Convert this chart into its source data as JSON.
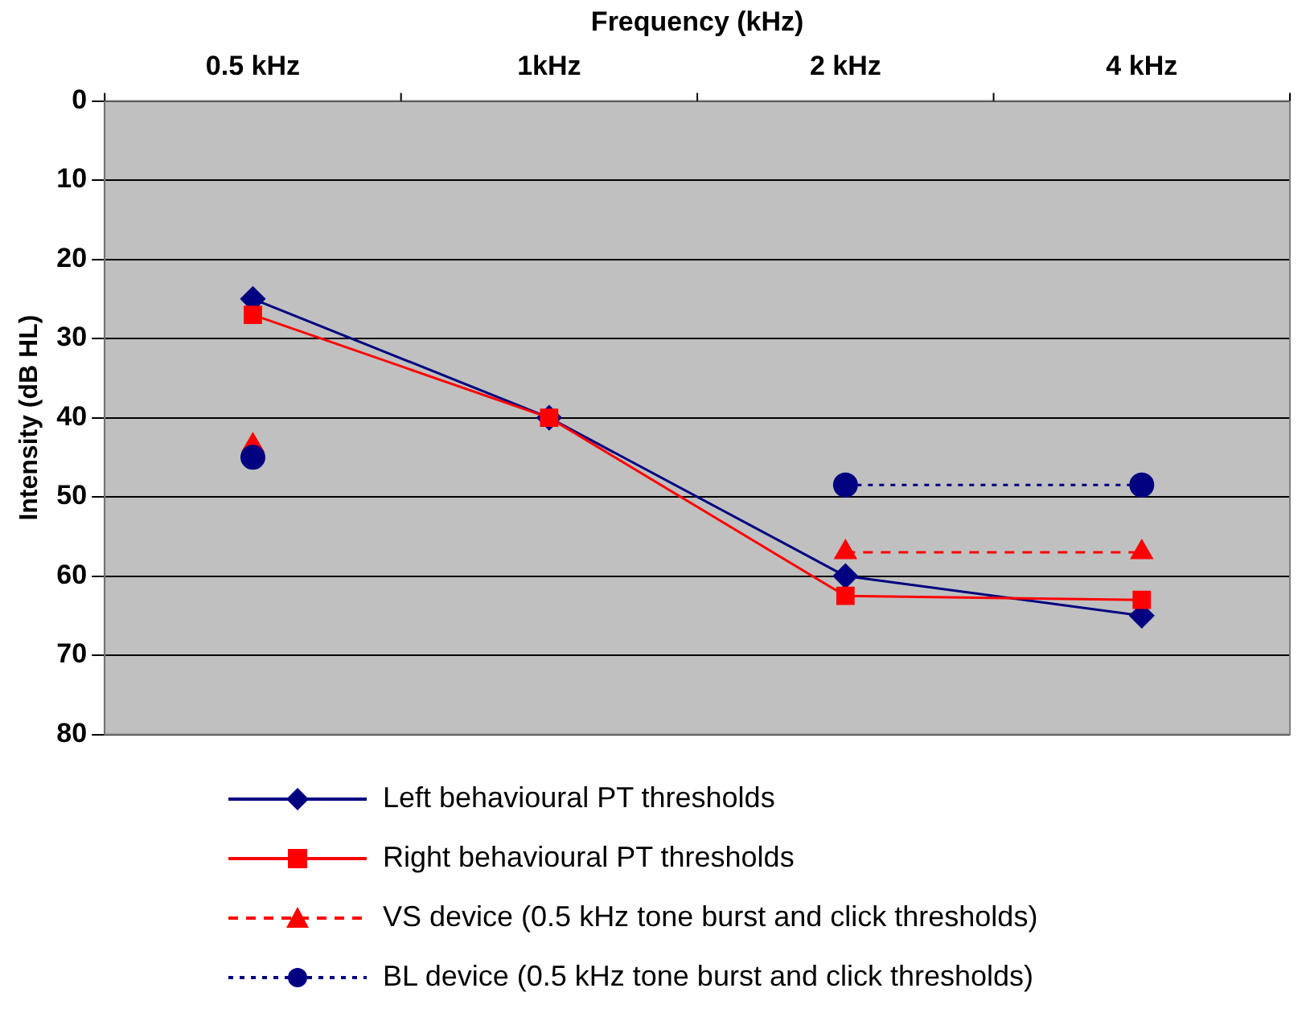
{
  "chart_data": {
    "type": "line",
    "xlabel": "Frequency (kHz)",
    "ylabel": "Intensity (dB HL)",
    "categories": [
      "0.5 kHz",
      "1kHz",
      "2 kHz",
      "4 kHz"
    ],
    "series": [
      {
        "name": "Left behavioural PT thresholds",
        "color": "#000080",
        "values": [
          25,
          40,
          60,
          65
        ],
        "marker": "diamond",
        "line_style": "solid"
      },
      {
        "name": "Right behavioural PT thresholds",
        "color": "#ff0000",
        "values": [
          27,
          40,
          62.5,
          63
        ],
        "marker": "square",
        "line_style": "solid"
      },
      {
        "name": "VS device (0.5 kHz tone burst and click thresholds)",
        "color": "#ff0000",
        "values": [
          43.5,
          null,
          57,
          57
        ],
        "marker": "triangle",
        "line_style": "dashed"
      },
      {
        "name": "BL device (0.5 kHz tone burst and click thresholds)",
        "color": "#000080",
        "values": [
          45,
          null,
          48.5,
          48.5
        ],
        "marker": "circle",
        "line_style": "dotted"
      }
    ],
    "ylim": [
      80,
      0
    ],
    "yticks": [
      0,
      10,
      20,
      30,
      40,
      50,
      60,
      70,
      80
    ],
    "grid": "y",
    "legend": "bottom"
  }
}
